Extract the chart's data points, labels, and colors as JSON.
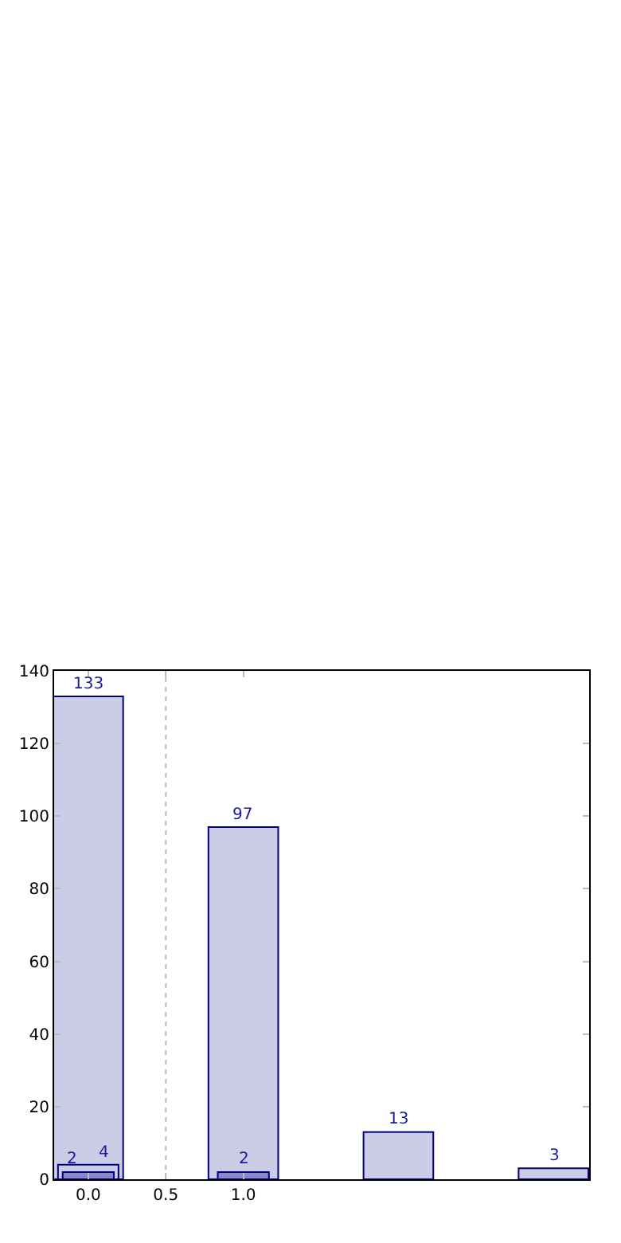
{
  "chart_data": {
    "type": "bar",
    "x": [
      0,
      1,
      2,
      3
    ],
    "series": [
      {
        "color": "#ccccE6",
        "values": [
          133,
          97,
          13,
          3
        ]
      },
      {
        "color": "#ccccE6",
        "values": [
          4,
          null,
          null,
          null
        ]
      },
      {
        "color": "#8888C4",
        "values": [
          2,
          2,
          null,
          null
        ]
      }
    ],
    "data_labels": true,
    "xlim": [
      -0.22,
      3.23
    ],
    "xticks": [
      {
        "value": 0,
        "label": "0.0"
      },
      {
        "value": 0.5,
        "label": "0.5"
      },
      {
        "value": 1,
        "label": "1.0"
      }
    ],
    "ylim": [
      0,
      140
    ],
    "yticks": [
      0,
      20,
      40,
      60,
      80,
      100,
      120,
      140
    ],
    "ref_lines": [
      {
        "axis": "x",
        "value": 0.5,
        "color": "#bbbbbb",
        "line_style": "dotted"
      }
    ],
    "grid": false
  }
}
